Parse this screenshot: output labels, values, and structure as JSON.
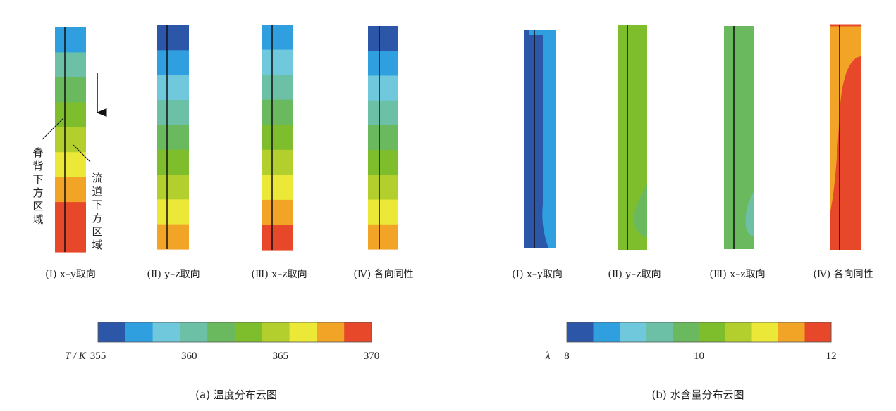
{
  "panels": [
    {
      "id": "a",
      "caption": "(a)  温度分布云图",
      "columns": [
        {
          "label": "(Ⅰ) x–y取向",
          "bands": [
            1,
            3,
            4,
            5,
            6,
            7,
            8,
            9,
            10
          ]
        },
        {
          "label": "(Ⅱ) y–z取向",
          "bands": [
            0,
            1,
            2,
            3,
            4,
            5,
            6,
            7,
            8
          ]
        },
        {
          "label": "(Ⅲ) x–z取向",
          "bands": [
            1,
            2,
            3,
            4,
            5,
            6,
            7,
            8,
            9
          ]
        },
        {
          "label": "(Ⅳ) 各向同性",
          "bands": [
            0,
            1,
            2,
            3,
            4,
            5,
            6,
            7,
            8
          ]
        }
      ],
      "colorbar": {
        "symbol": "T / K",
        "min": 355,
        "max": 370,
        "ticks": [
          "355",
          "360",
          "365",
          "370"
        ]
      },
      "annotations": {
        "ridge_region": [
          "脊",
          "背",
          "下",
          "方",
          "区",
          "域"
        ],
        "channel_region": [
          "流",
          "道",
          "下",
          "方",
          "区",
          "域"
        ],
        "arrow": "flow direction downward"
      }
    },
    {
      "id": "b",
      "caption": "(b)  水含量分布云图",
      "columns": [
        {
          "label": "(Ⅰ) x–y取向",
          "fill_level": 1,
          "edge_level": 0
        },
        {
          "label": "(Ⅱ) y–z取向",
          "fill_level": 5,
          "edge_level": 4
        },
        {
          "label": "(Ⅲ) x–z取向",
          "fill_level": 4,
          "edge_level": 3
        },
        {
          "label": "(Ⅳ) 各向同性",
          "fill_level": 9,
          "edge_level": 8
        }
      ],
      "colorbar": {
        "symbol": "λ",
        "min": 8,
        "max": 12,
        "ticks": [
          "8",
          "10",
          "12"
        ]
      }
    }
  ],
  "palette": [
    "#2c56a8",
    "#2f9fe0",
    "#6fc8dc",
    "#6cc0a6",
    "#6ab95e",
    "#7ebd2b",
    "#b2cf2d",
    "#ebe838",
    "#f2a427",
    "#e8482a"
  ]
}
